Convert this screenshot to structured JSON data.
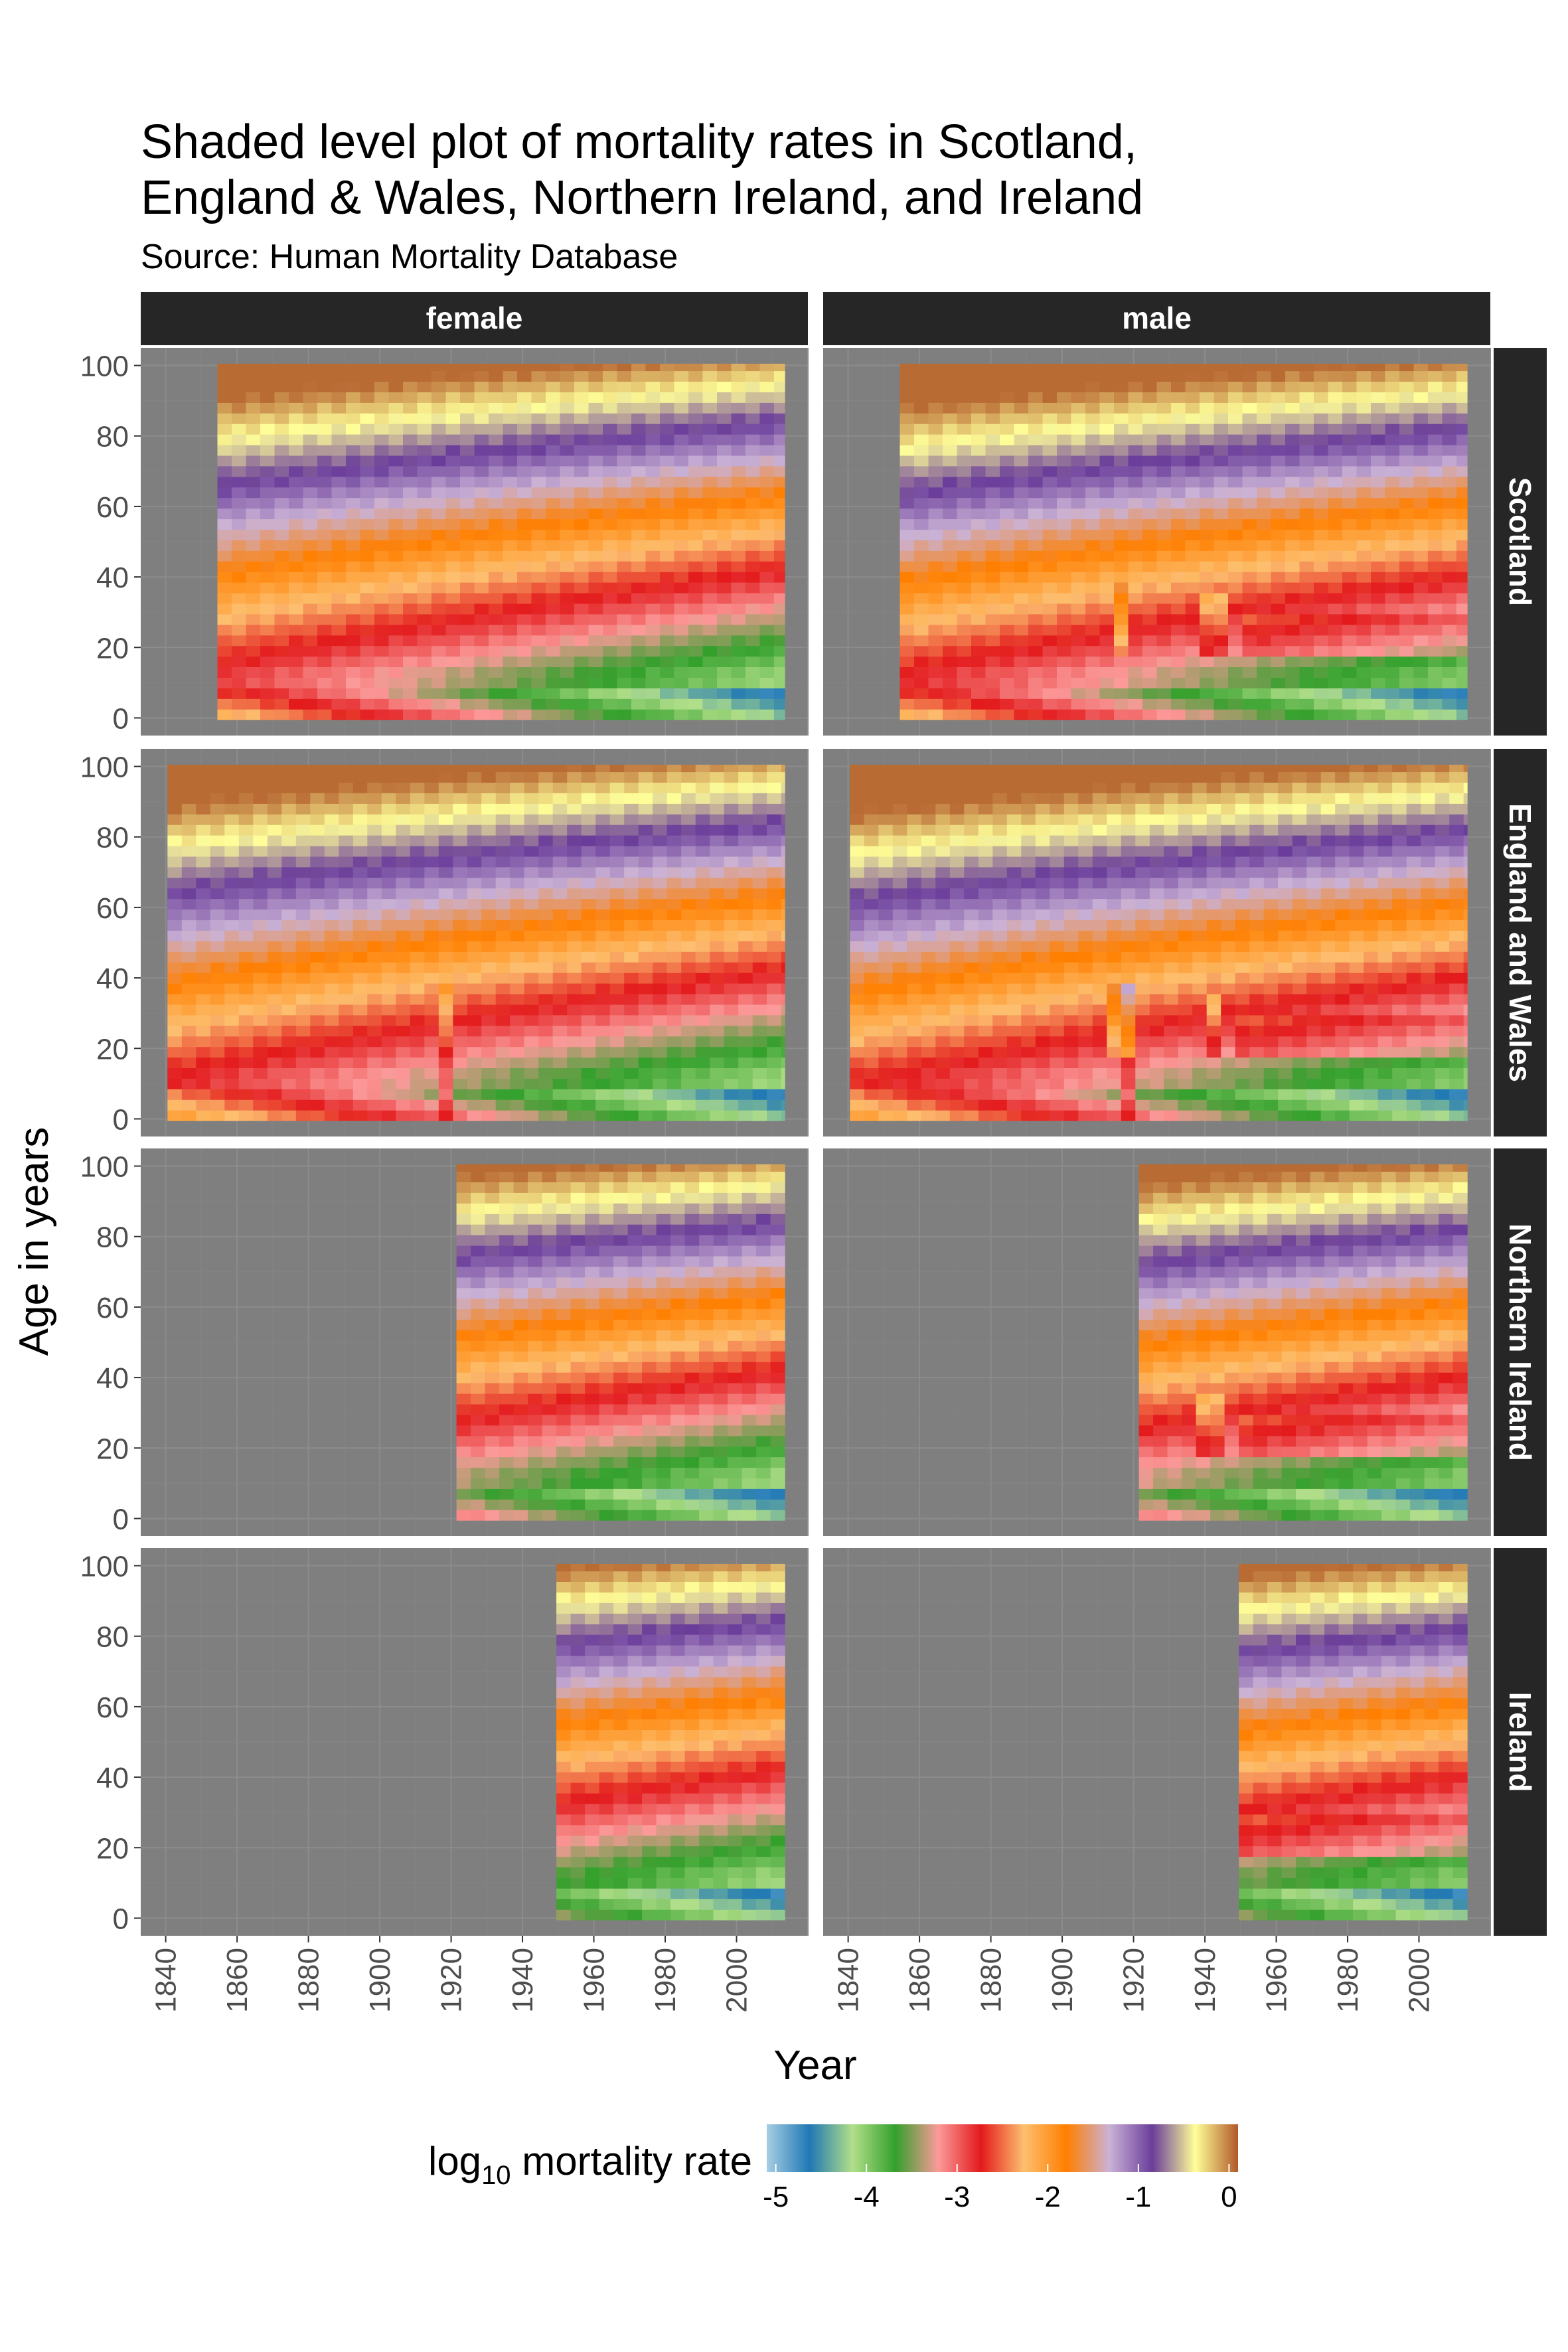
{
  "chart_data": {
    "type": "heatmap",
    "title_lines": [
      "Shaded level plot of mortality rates in Scotland,",
      "England & Wales, Northern Ireland, and Ireland"
    ],
    "subtitle": "Source: Human Mortality Database",
    "xlabel": "Year",
    "ylabel": "Age in years",
    "xlim": [
      1833,
      2020
    ],
    "ylim": [
      -5,
      105
    ],
    "x_ticks": [
      1840,
      1860,
      1880,
      1900,
      1920,
      1940,
      1960,
      1980,
      2000
    ],
    "y_ticks": [
      0,
      20,
      40,
      60,
      80,
      100
    ],
    "facet_columns": [
      "female",
      "male"
    ],
    "facet_rows": [
      "Scotland",
      "England and Wales",
      "Northern Ireland",
      "Ireland"
    ],
    "panels": [
      {
        "row": "Scotland",
        "col": "female",
        "year_range": [
          1855,
          2013
        ],
        "age_range": [
          0,
          100
        ]
      },
      {
        "row": "Scotland",
        "col": "male",
        "year_range": [
          1855,
          2013
        ],
        "age_range": [
          0,
          100
        ]
      },
      {
        "row": "England and Wales",
        "col": "female",
        "year_range": [
          1841,
          2013
        ],
        "age_range": [
          0,
          100
        ]
      },
      {
        "row": "England and Wales",
        "col": "male",
        "year_range": [
          1841,
          2013
        ],
        "age_range": [
          0,
          100
        ]
      },
      {
        "row": "Northern Ireland",
        "col": "female",
        "year_range": [
          1922,
          2013
        ],
        "age_range": [
          0,
          100
        ]
      },
      {
        "row": "Northern Ireland",
        "col": "male",
        "year_range": [
          1922,
          2013
        ],
        "age_range": [
          0,
          100
        ]
      },
      {
        "row": "Ireland",
        "col": "female",
        "year_range": [
          1950,
          2013
        ],
        "age_range": [
          0,
          100
        ]
      },
      {
        "row": "Ireland",
        "col": "male",
        "year_range": [
          1950,
          2013
        ],
        "age_range": [
          0,
          100
        ]
      }
    ],
    "legend": {
      "title_main": "log",
      "title_sub": "10",
      "title_rest": " mortality rate",
      "position": "bottom",
      "range": [
        -5.1,
        0.1
      ],
      "ticks": [
        -5,
        -4,
        -3,
        -2,
        -1,
        0
      ],
      "tick_labels": [
        "-5",
        "-4",
        "-3",
        "-2",
        "-1",
        "0"
      ],
      "colors": [
        "#A6CEE3",
        "#1F78B4",
        "#B2DF8A",
        "#33A02C",
        "#FB9A99",
        "#E31A1C",
        "#FDBF6F",
        "#FF7F00",
        "#CAB2D6",
        "#6A3D9A",
        "#FFFF99",
        "#B15928"
      ]
    },
    "panel_background": "#7f7f7f",
    "strip_background": "#262626",
    "grid": true
  }
}
